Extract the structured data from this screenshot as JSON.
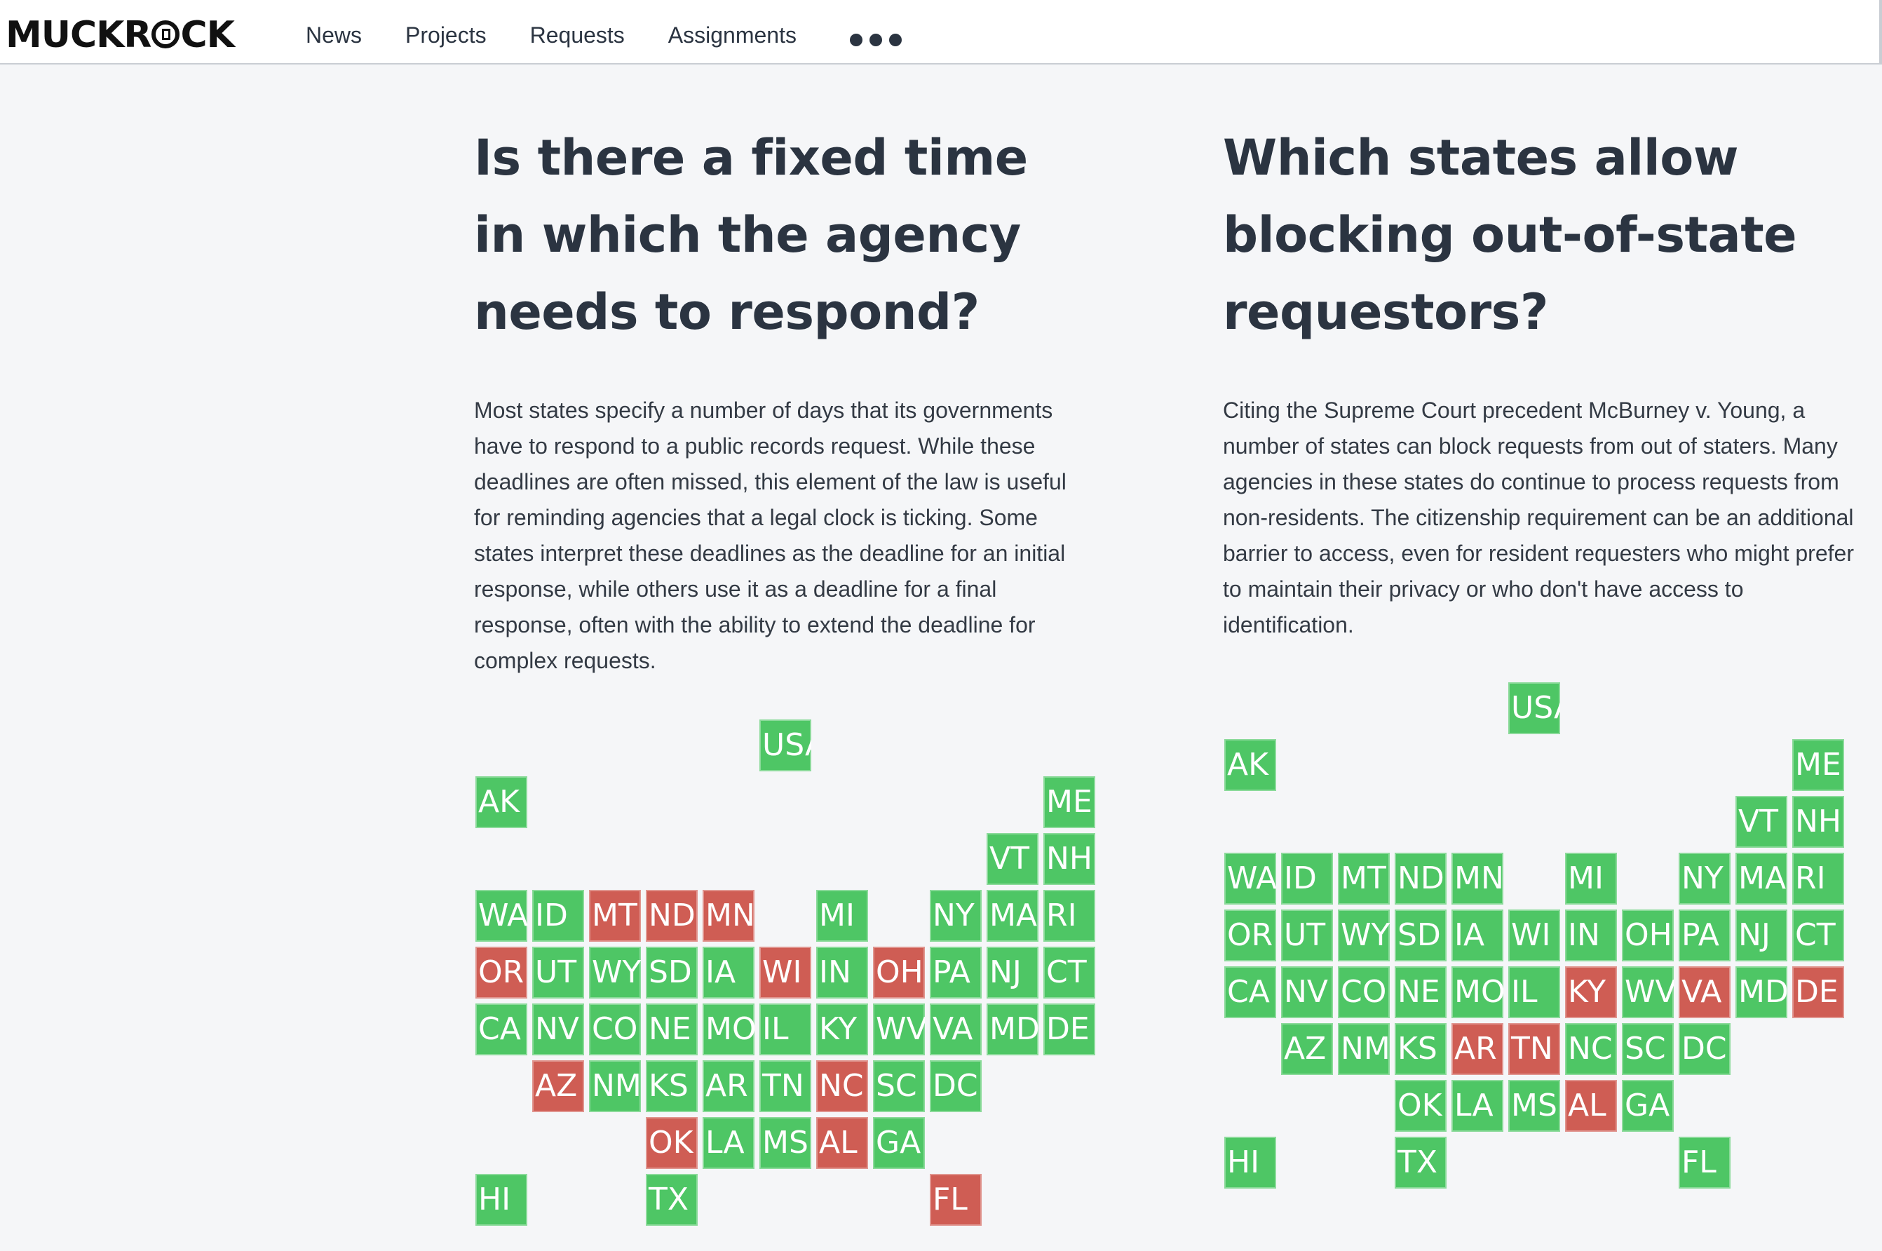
{
  "header": {
    "logo": "MUCKROCK",
    "nav": [
      "News",
      "Projects",
      "Requests",
      "Assignments"
    ]
  },
  "colors": {
    "yes": "#4ec665",
    "no": "#cf5d54"
  },
  "left": {
    "title": "Is there a fixed time in which the agency needs to respond?",
    "body": "Most states specify a number of days that its governments have to respond to a public records request. While these deadlines are often missed, this element of the law is useful for reminding agencies that a legal clock is ticking. Some states interpret these deadlines as the deadline for an initial response, while others use it as a deadline for a final response, often with the ability to extend the deadline for complex requests.",
    "no_states": [
      "MT",
      "ND",
      "MN",
      "OR",
      "WI",
      "OH",
      "AZ",
      "NC",
      "OK",
      "AL",
      "FL"
    ]
  },
  "right": {
    "title": "Which states allow blocking out-of-state requestors?",
    "body": "Citing the Supreme Court precedent McBurney v. Young, a number of states can block requests from out of staters. Many agencies in these states do continue to process requests from non-residents. The citizenship requirement can be an additional barrier to access, even for resident requesters who might prefer to maintain their privacy or who don't have access to identification.",
    "no_states": [
      "KY",
      "VA",
      "DE",
      "AR",
      "TN",
      "AL"
    ]
  }
}
